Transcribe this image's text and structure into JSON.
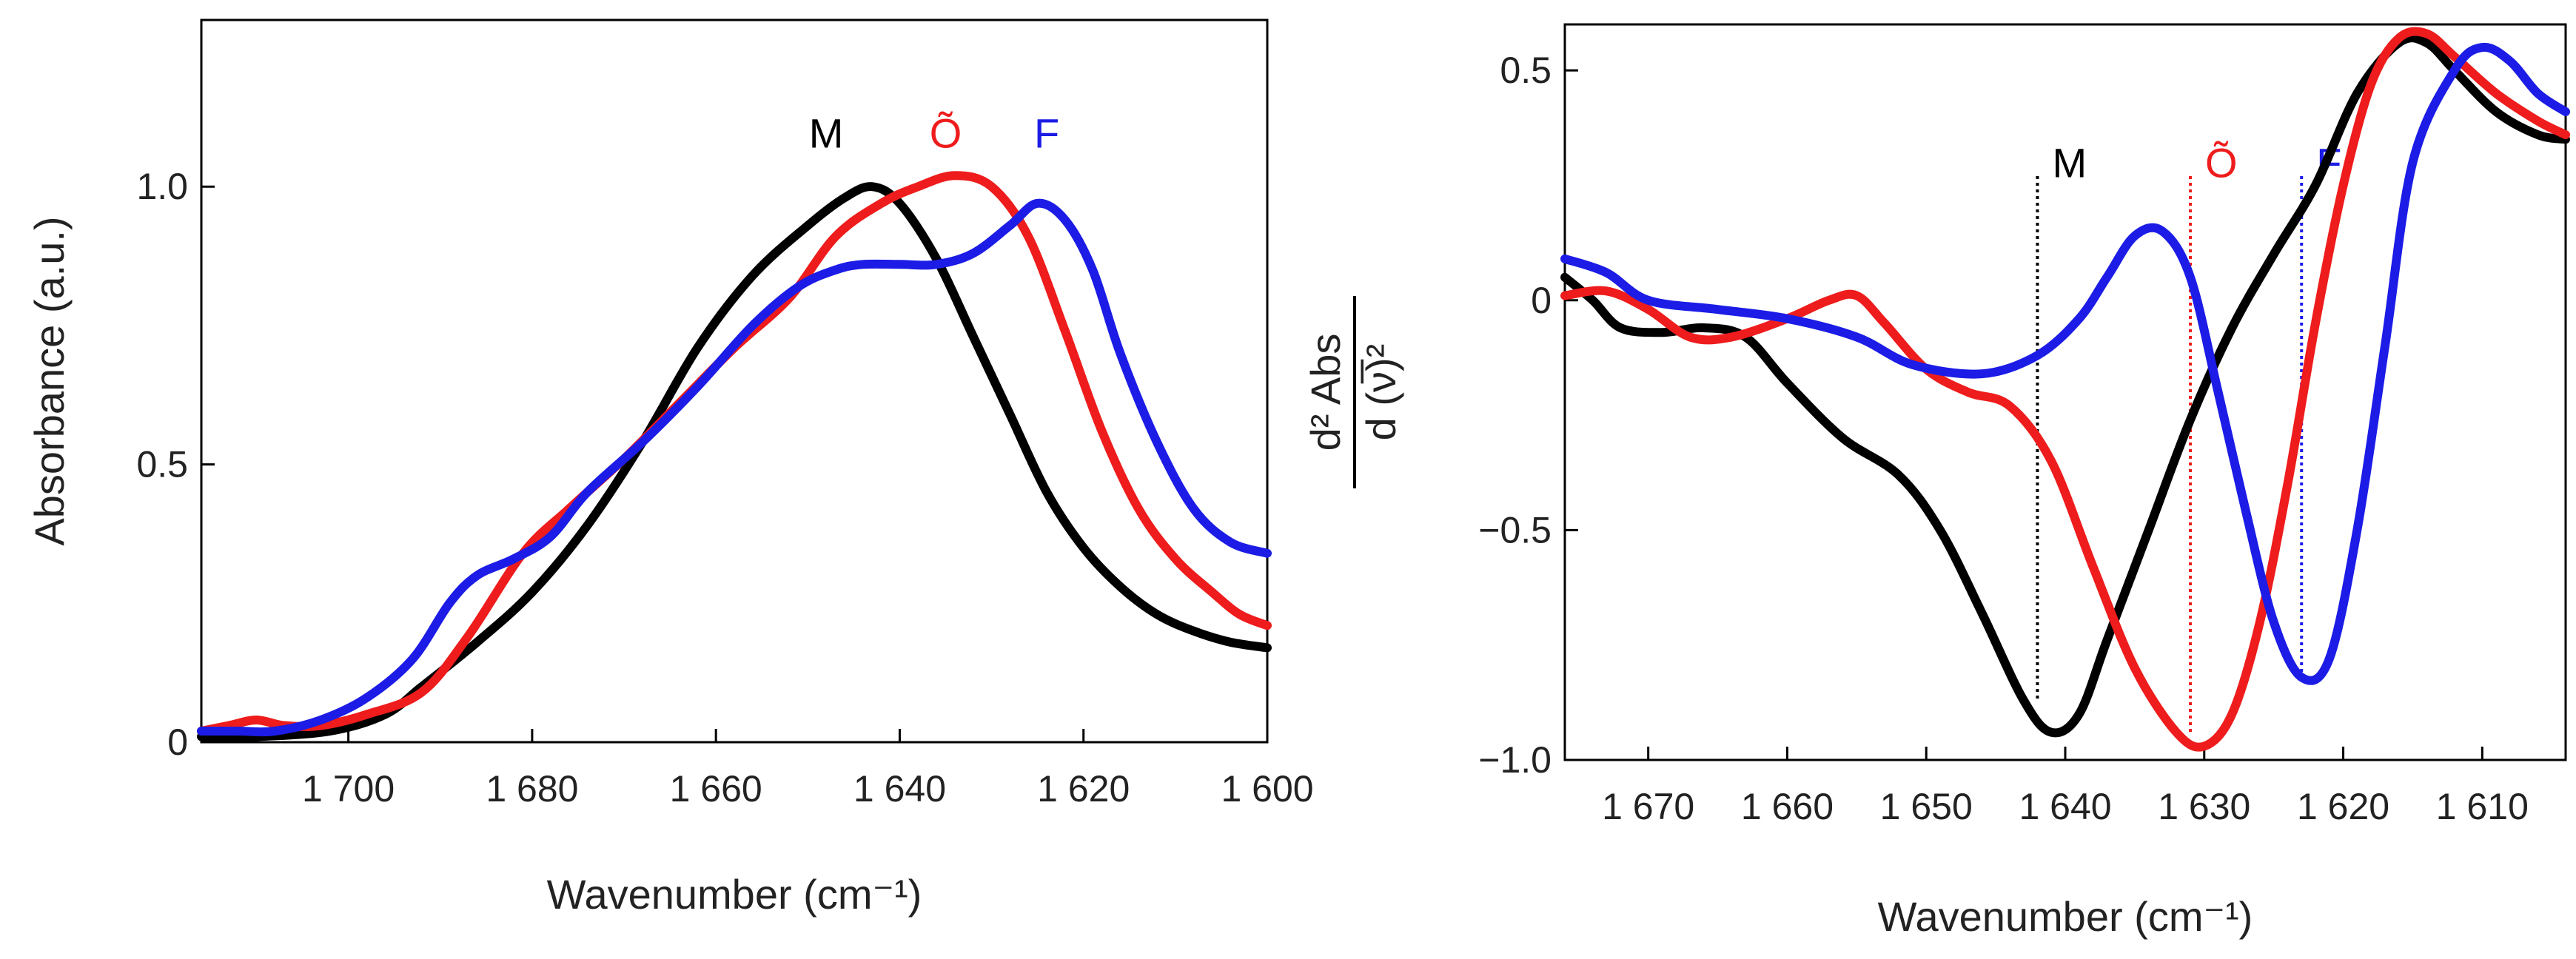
{
  "chart_data": [
    {
      "id": "absorbance",
      "type": "line",
      "xlabel": "Wavenumber (cm⁻¹)",
      "ylabel": "Absorbance (a.u.)",
      "xlim": [
        1716,
        1600
      ],
      "ylim": [
        0,
        1.3
      ],
      "x_ticks": [
        1700,
        1680,
        1660,
        1640,
        1620,
        1600
      ],
      "x_tick_labels": [
        "1 700",
        "1 680",
        "1 660",
        "1 640",
        "1 620",
        "1 600"
      ],
      "y_ticks": [
        0,
        0.5,
        1.0
      ],
      "y_tick_labels": [
        "0",
        "0.5",
        "1.0"
      ],
      "series": [
        {
          "name": "M",
          "color": "#000000",
          "points": [
            [
              1716,
              0.01
            ],
            [
              1710,
              0.01
            ],
            [
              1702,
              0.02
            ],
            [
              1696,
              0.05
            ],
            [
              1692,
              0.1
            ],
            [
              1686,
              0.18
            ],
            [
              1680,
              0.27
            ],
            [
              1674,
              0.39
            ],
            [
              1668,
              0.54
            ],
            [
              1662,
              0.71
            ],
            [
              1656,
              0.84
            ],
            [
              1650,
              0.93
            ],
            [
              1646,
              0.98
            ],
            [
              1643,
              1.0
            ],
            [
              1640,
              0.97
            ],
            [
              1636,
              0.87
            ],
            [
              1632,
              0.73
            ],
            [
              1628,
              0.59
            ],
            [
              1624,
              0.45
            ],
            [
              1620,
              0.35
            ],
            [
              1616,
              0.28
            ],
            [
              1612,
              0.23
            ],
            [
              1608,
              0.2
            ],
            [
              1604,
              0.18
            ],
            [
              1600,
              0.17
            ]
          ]
        },
        {
          "name": "Õ",
          "color": "#ee1c1c",
          "points": [
            [
              1716,
              0.02
            ],
            [
              1713,
              0.03
            ],
            [
              1710,
              0.04
            ],
            [
              1707,
              0.03
            ],
            [
              1703,
              0.03
            ],
            [
              1698,
              0.05
            ],
            [
              1692,
              0.09
            ],
            [
              1687,
              0.19
            ],
            [
              1681,
              0.34
            ],
            [
              1676,
              0.42
            ],
            [
              1670,
              0.51
            ],
            [
              1664,
              0.61
            ],
            [
              1658,
              0.71
            ],
            [
              1652,
              0.8
            ],
            [
              1647,
              0.91
            ],
            [
              1642,
              0.97
            ],
            [
              1638,
              1.0
            ],
            [
              1634,
              1.02
            ],
            [
              1630,
              1.0
            ],
            [
              1626,
              0.91
            ],
            [
              1622,
              0.74
            ],
            [
              1618,
              0.56
            ],
            [
              1614,
              0.42
            ],
            [
              1610,
              0.33
            ],
            [
              1606,
              0.27
            ],
            [
              1603,
              0.23
            ],
            [
              1600,
              0.21
            ]
          ]
        },
        {
          "name": "F",
          "color": "#1c1ce6",
          "points": [
            [
              1716,
              0.02
            ],
            [
              1712,
              0.02
            ],
            [
              1708,
              0.02
            ],
            [
              1703,
              0.04
            ],
            [
              1698,
              0.08
            ],
            [
              1693,
              0.15
            ],
            [
              1689,
              0.25
            ],
            [
              1686,
              0.3
            ],
            [
              1682,
              0.33
            ],
            [
              1678,
              0.37
            ],
            [
              1674,
              0.45
            ],
            [
              1668,
              0.54
            ],
            [
              1662,
              0.64
            ],
            [
              1656,
              0.75
            ],
            [
              1651,
              0.82
            ],
            [
              1647,
              0.85
            ],
            [
              1644,
              0.86
            ],
            [
              1640,
              0.86
            ],
            [
              1636,
              0.86
            ],
            [
              1632,
              0.88
            ],
            [
              1628,
              0.93
            ],
            [
              1625,
              0.97
            ],
            [
              1622,
              0.94
            ],
            [
              1619,
              0.85
            ],
            [
              1616,
              0.7
            ],
            [
              1612,
              0.54
            ],
            [
              1608,
              0.42
            ],
            [
              1604,
              0.36
            ],
            [
              1600,
              0.34
            ]
          ]
        }
      ],
      "annotations": [
        {
          "text": "M",
          "color": "#000000",
          "x": 1648,
          "y": 1.07
        },
        {
          "text": "Õ",
          "color": "#ee1c1c",
          "x": 1635,
          "y": 1.07
        },
        {
          "text": "F",
          "color": "#1c1ce6",
          "x": 1624,
          "y": 1.07
        }
      ]
    },
    {
      "id": "second-derivative",
      "type": "line",
      "xlabel": "Wavenumber (cm⁻¹)",
      "ylabel_numerator": "d² Abs",
      "ylabel_denominator": "d (ν̅)²",
      "xlim": [
        1676,
        1604
      ],
      "ylim": [
        -1.0,
        0.6
      ],
      "x_ticks": [
        1670,
        1660,
        1650,
        1640,
        1630,
        1620,
        1610
      ],
      "x_tick_labels": [
        "1 670",
        "1 660",
        "1 650",
        "1 640",
        "1 630",
        "1 620",
        "1 610"
      ],
      "y_ticks": [
        0.5,
        0,
        -0.5,
        -1.0
      ],
      "y_tick_labels": [
        "0.5",
        "0",
        "−0.5",
        "−1.0"
      ],
      "series": [
        {
          "name": "M",
          "color": "#000000",
          "points": [
            [
              1676,
              0.05
            ],
            [
              1674,
              0.0
            ],
            [
              1672,
              -0.06
            ],
            [
              1669,
              -0.07
            ],
            [
              1666,
              -0.06
            ],
            [
              1663,
              -0.08
            ],
            [
              1660,
              -0.18
            ],
            [
              1656,
              -0.3
            ],
            [
              1652,
              -0.38
            ],
            [
              1649,
              -0.5
            ],
            [
              1646,
              -0.68
            ],
            [
              1643,
              -0.87
            ],
            [
              1641,
              -0.94
            ],
            [
              1639,
              -0.9
            ],
            [
              1637,
              -0.74
            ],
            [
              1634,
              -0.5
            ],
            [
              1631,
              -0.26
            ],
            [
              1628,
              -0.06
            ],
            [
              1625,
              0.1
            ],
            [
              1622,
              0.25
            ],
            [
              1619,
              0.45
            ],
            [
              1616,
              0.56
            ],
            [
              1614,
              0.56
            ],
            [
              1612,
              0.5
            ],
            [
              1609,
              0.41
            ],
            [
              1606,
              0.36
            ],
            [
              1604,
              0.35
            ]
          ]
        },
        {
          "name": "Õ",
          "color": "#ee1c1c",
          "points": [
            [
              1676,
              0.01
            ],
            [
              1673,
              0.02
            ],
            [
              1670,
              -0.02
            ],
            [
              1667,
              -0.08
            ],
            [
              1664,
              -0.08
            ],
            [
              1660,
              -0.04
            ],
            [
              1657,
              0.0
            ],
            [
              1655,
              0.01
            ],
            [
              1653,
              -0.05
            ],
            [
              1650,
              -0.15
            ],
            [
              1647,
              -0.2
            ],
            [
              1644,
              -0.23
            ],
            [
              1641,
              -0.35
            ],
            [
              1638,
              -0.58
            ],
            [
              1635,
              -0.8
            ],
            [
              1632,
              -0.94
            ],
            [
              1630,
              -0.97
            ],
            [
              1628,
              -0.9
            ],
            [
              1626,
              -0.7
            ],
            [
              1624,
              -0.4
            ],
            [
              1622,
              -0.05
            ],
            [
              1620,
              0.25
            ],
            [
              1618,
              0.47
            ],
            [
              1616,
              0.57
            ],
            [
              1614,
              0.58
            ],
            [
              1612,
              0.53
            ],
            [
              1609,
              0.45
            ],
            [
              1606,
              0.39
            ],
            [
              1604,
              0.36
            ]
          ]
        },
        {
          "name": "F",
          "color": "#1c1ce6",
          "points": [
            [
              1676,
              0.09
            ],
            [
              1673,
              0.06
            ],
            [
              1670,
              0.0
            ],
            [
              1665,
              -0.02
            ],
            [
              1660,
              -0.04
            ],
            [
              1655,
              -0.08
            ],
            [
              1651,
              -0.14
            ],
            [
              1646,
              -0.16
            ],
            [
              1642,
              -0.12
            ],
            [
              1639,
              -0.04
            ],
            [
              1637,
              0.05
            ],
            [
              1635,
              0.14
            ],
            [
              1633,
              0.15
            ],
            [
              1631,
              0.05
            ],
            [
              1629,
              -0.2
            ],
            [
              1627,
              -0.46
            ],
            [
              1625,
              -0.7
            ],
            [
              1623,
              -0.82
            ],
            [
              1621,
              -0.78
            ],
            [
              1619,
              -0.5
            ],
            [
              1617,
              -0.1
            ],
            [
              1615,
              0.3
            ],
            [
              1612,
              0.5
            ],
            [
              1610,
              0.55
            ],
            [
              1608,
              0.52
            ],
            [
              1606,
              0.45
            ],
            [
              1604,
              0.41
            ]
          ]
        }
      ],
      "markers": [
        {
          "text": "M",
          "color": "#000000",
          "x": 1642,
          "label_y": 0.3
        },
        {
          "text": "Õ",
          "color": "#ee1c1c",
          "x": 1631,
          "label_y": 0.3
        },
        {
          "text": "F",
          "color": "#1c1ce6",
          "x": 1623,
          "label_y": 0.3
        }
      ]
    }
  ]
}
